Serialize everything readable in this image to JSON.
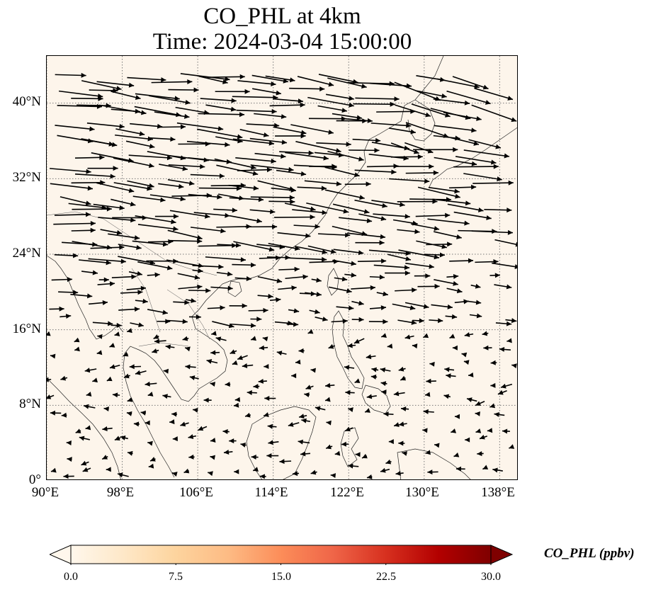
{
  "title": {
    "line1": "CO_PHL at 4km",
    "line2": "Time: 2024-03-04 15:00:00"
  },
  "map": {
    "extent_lon": [
      90,
      140
    ],
    "extent_lat": [
      0,
      45
    ],
    "background_color": "#fdf5eb",
    "gridline_style": "dotted",
    "lon_ticks": [
      "90°E",
      "98°E",
      "106°E",
      "114°E",
      "122°E",
      "130°E",
      "138°E"
    ],
    "lon_values": [
      90,
      98,
      106,
      114,
      122,
      130,
      138
    ],
    "lat_ticks": [
      "0°",
      "8°N",
      "16°N",
      "24°N",
      "32°N",
      "40°N"
    ],
    "lat_values": [
      0,
      8,
      16,
      24,
      32,
      40
    ],
    "wind_vectors_color": "#000000"
  },
  "colorbar": {
    "label": "CO_PHL (ppbv)",
    "ticks": [
      "0.0",
      "7.5",
      "15.0",
      "22.5",
      "30.0"
    ],
    "tick_values": [
      0,
      7.5,
      15,
      22.5,
      30
    ],
    "range": [
      0,
      30
    ],
    "colormap": "OrRd",
    "extend": "both",
    "colors": [
      "#fff7ec",
      "#fee8c8",
      "#fdd49e",
      "#fdbb84",
      "#fc8d59",
      "#ef6548",
      "#d7301f",
      "#b30000",
      "#7f0000"
    ]
  }
}
